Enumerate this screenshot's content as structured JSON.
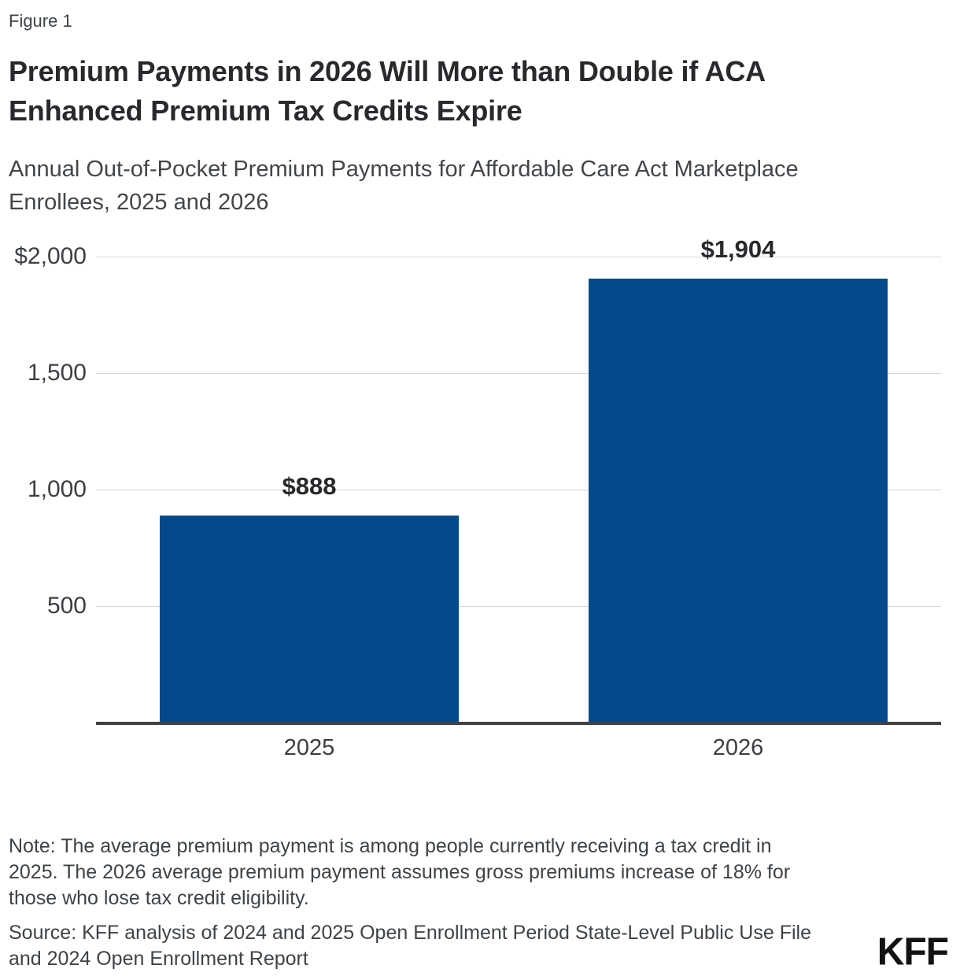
{
  "figure_label": "Figure 1",
  "title_lines": [
    "Premium Payments in 2026 Will More than Double if ACA",
    "Enhanced Premium Tax Credits Expire"
  ],
  "subtitle_lines": [
    "Annual Out-of-Pocket Premium Payments for Affordable Care Act Marketplace",
    "Enrollees, 2025 and 2026"
  ],
  "chart_data": {
    "type": "bar",
    "title": "Premium Payments in 2026 Will More than Double if ACA Enhanced Premium Tax Credits Expire",
    "subtitle": "Annual Out-of-Pocket Premium Payments for Affordable Care Act Marketplace Enrollees, 2025 and 2026",
    "categories": [
      "2025",
      "2026"
    ],
    "values": [
      888,
      1904
    ],
    "value_labels": [
      "$888",
      "$1,904"
    ],
    "xlabel": "",
    "ylabel": "",
    "ylim": [
      0,
      2000
    ],
    "grid": true,
    "legend": false,
    "y_ticks": [
      {
        "value": 2000,
        "label": "$2,000"
      },
      {
        "value": 1500,
        "label": "1,500"
      },
      {
        "value": 1000,
        "label": "1,000"
      },
      {
        "value": 500,
        "label": "500"
      }
    ],
    "bar_color": "#04498A",
    "gridline_color": "#d7d7d7",
    "axis_color": "#3f4245"
  },
  "note_lines": [
    "Note: The average premium payment is among people currently receiving a tax credit in",
    "2025. The 2026 average premium payment assumes gross premiums increase of 18% for",
    "those who lose tax credit eligibility."
  ],
  "source_lines": [
    "Source: KFF analysis of 2024 and 2025 Open Enrollment Period State-Level Public Use File",
    "and 2024 Open Enrollment Report"
  ],
  "logo_text": "KFF"
}
